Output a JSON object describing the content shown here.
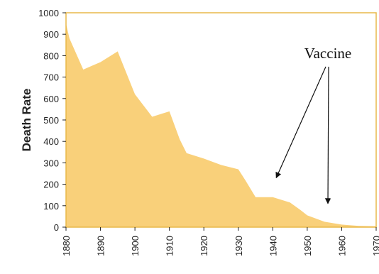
{
  "chart_data": {
    "type": "area",
    "title": "",
    "xlabel": "",
    "ylabel": "Death Rate",
    "xlim": [
      1880,
      1970
    ],
    "ylim": [
      0,
      1000
    ],
    "xticks": [
      1880,
      1890,
      1900,
      1910,
      1920,
      1930,
      1940,
      1950,
      1960,
      1970
    ],
    "yticks": [
      0,
      100,
      200,
      300,
      400,
      500,
      600,
      700,
      800,
      900,
      1000
    ],
    "grid": false,
    "legend": "none",
    "series": [
      {
        "color": "#f9d07a",
        "x": [
          1880,
          1881,
          1885,
          1890,
          1895,
          1900,
          1905,
          1908,
          1910,
          1913,
          1915,
          1920,
          1925,
          1930,
          1932,
          1935,
          1940,
          1945,
          1948,
          1950,
          1955,
          1960,
          1965,
          1970
        ],
        "y": [
          950,
          880,
          735,
          770,
          820,
          620,
          515,
          530,
          540,
          410,
          345,
          320,
          290,
          270,
          220,
          140,
          140,
          115,
          80,
          55,
          25,
          12,
          6,
          4
        ]
      }
    ],
    "annotations": [
      {
        "text": "Vaccine",
        "arrows_to": [
          {
            "x": 1941,
            "y": 230
          },
          {
            "x": 1956,
            "y": 110
          }
        ]
      }
    ]
  },
  "style": {
    "frame_color": "#e8b84a",
    "axis_color": "#222222"
  }
}
